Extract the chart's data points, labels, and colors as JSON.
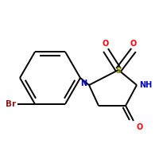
{
  "bg_color": "#ffffff",
  "bond_color": "#000000",
  "atom_colors": {
    "Br": "#8B1A1A",
    "N": "#0000CC",
    "S": "#808000",
    "O": "#FF0000",
    "NH": "#0000CC"
  },
  "lw": 1.4,
  "dbo": 0.012,
  "fs": 7.0
}
